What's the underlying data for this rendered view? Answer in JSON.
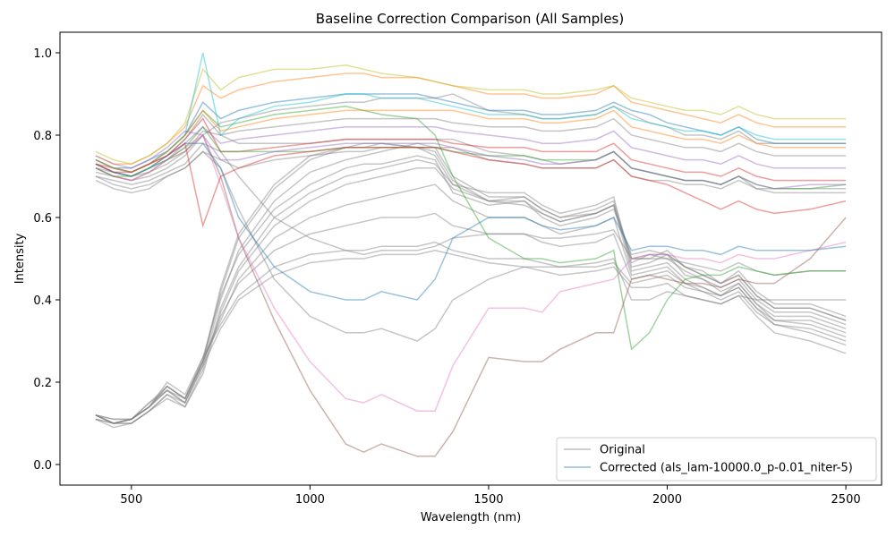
{
  "chart_data": {
    "type": "line",
    "title": "Baseline Correction Comparison (All Samples)",
    "xlabel": "Wavelength (nm)",
    "ylabel": "Intensity",
    "xlim": [
      300,
      2600
    ],
    "ylim": [
      -0.05,
      1.05
    ],
    "xticks": [
      500,
      1000,
      1500,
      2000,
      2500
    ],
    "yticks": [
      0.0,
      0.2,
      0.4,
      0.6,
      0.8,
      1.0
    ],
    "grid": false,
    "legend_position": "bottom-right",
    "legend": [
      {
        "label": "Original",
        "color": "#808080"
      },
      {
        "label": "Corrected (als_lam-10000.0_p-0.01_niter-5)",
        "color": "#1f77b4"
      }
    ],
    "original_color": "#808080",
    "corrected_palette": [
      "#1f77b4",
      "#ff7f0e",
      "#2ca02c",
      "#d62728",
      "#9467bd",
      "#8c564b",
      "#e377c2",
      "#7f7f7f",
      "#bcbd22",
      "#17becf"
    ],
    "x": [
      400,
      450,
      500,
      550,
      600,
      650,
      700,
      750,
      800,
      900,
      1000,
      1100,
      1150,
      1200,
      1300,
      1350,
      1400,
      1500,
      1600,
      1650,
      1700,
      1800,
      1850,
      1900,
      1950,
      2000,
      2050,
      2100,
      2150,
      2200,
      2250,
      2300,
      2400,
      2500
    ],
    "original_series": [
      {
        "values": [
          0.12,
          0.1,
          0.11,
          0.14,
          0.18,
          0.15,
          0.24,
          0.4,
          0.52,
          0.64,
          0.71,
          0.74,
          0.75,
          0.76,
          0.78,
          0.77,
          0.7,
          0.65,
          0.65,
          0.62,
          0.6,
          0.62,
          0.64,
          0.5,
          0.5,
          0.52,
          0.48,
          0.46,
          0.44,
          0.46,
          0.41,
          0.38,
          0.38,
          0.35
        ]
      },
      {
        "values": [
          0.12,
          0.1,
          0.11,
          0.15,
          0.19,
          0.16,
          0.25,
          0.42,
          0.55,
          0.67,
          0.74,
          0.77,
          0.77,
          0.78,
          0.77,
          0.76,
          0.69,
          0.64,
          0.63,
          0.61,
          0.59,
          0.61,
          0.63,
          0.49,
          0.51,
          0.5,
          0.47,
          0.45,
          0.43,
          0.45,
          0.4,
          0.37,
          0.37,
          0.34
        ]
      },
      {
        "values": [
          0.11,
          0.1,
          0.1,
          0.13,
          0.17,
          0.14,
          0.23,
          0.38,
          0.48,
          0.6,
          0.66,
          0.7,
          0.71,
          0.72,
          0.74,
          0.73,
          0.68,
          0.66,
          0.66,
          0.63,
          0.61,
          0.63,
          0.65,
          0.48,
          0.49,
          0.51,
          0.46,
          0.45,
          0.42,
          0.44,
          0.39,
          0.36,
          0.36,
          0.33
        ]
      },
      {
        "values": [
          0.12,
          0.11,
          0.11,
          0.14,
          0.2,
          0.17,
          0.26,
          0.41,
          0.51,
          0.62,
          0.68,
          0.72,
          0.73,
          0.73,
          0.75,
          0.74,
          0.66,
          0.63,
          0.64,
          0.6,
          0.58,
          0.6,
          0.62,
          0.51,
          0.52,
          0.51,
          0.48,
          0.47,
          0.44,
          0.47,
          0.42,
          0.39,
          0.39,
          0.36
        ]
      },
      {
        "values": [
          0.11,
          0.09,
          0.1,
          0.13,
          0.16,
          0.14,
          0.22,
          0.37,
          0.47,
          0.58,
          0.64,
          0.68,
          0.69,
          0.7,
          0.72,
          0.72,
          0.67,
          0.64,
          0.65,
          0.62,
          0.6,
          0.61,
          0.63,
          0.47,
          0.48,
          0.49,
          0.45,
          0.43,
          0.41,
          0.43,
          0.38,
          0.35,
          0.35,
          0.32
        ]
      },
      {
        "values": [
          0.12,
          0.1,
          0.11,
          0.14,
          0.19,
          0.16,
          0.25,
          0.35,
          0.45,
          0.55,
          0.6,
          0.63,
          0.64,
          0.65,
          0.67,
          0.68,
          0.64,
          0.6,
          0.6,
          0.58,
          0.56,
          0.58,
          0.6,
          0.46,
          0.47,
          0.48,
          0.44,
          0.42,
          0.4,
          0.42,
          0.37,
          0.34,
          0.33,
          0.3
        ]
      },
      {
        "values": [
          0.12,
          0.1,
          0.11,
          0.15,
          0.18,
          0.16,
          0.26,
          0.34,
          0.41,
          0.48,
          0.51,
          0.52,
          0.52,
          0.53,
          0.53,
          0.54,
          0.52,
          0.5,
          0.5,
          0.49,
          0.48,
          0.48,
          0.49,
          0.44,
          0.45,
          0.46,
          0.43,
          0.42,
          0.41,
          0.43,
          0.38,
          0.34,
          0.32,
          0.29
        ]
      },
      {
        "values": [
          0.11,
          0.1,
          0.1,
          0.13,
          0.17,
          0.15,
          0.24,
          0.33,
          0.4,
          0.46,
          0.49,
          0.5,
          0.5,
          0.51,
          0.51,
          0.52,
          0.51,
          0.49,
          0.48,
          0.47,
          0.46,
          0.47,
          0.48,
          0.43,
          0.43,
          0.44,
          0.41,
          0.4,
          0.39,
          0.41,
          0.36,
          0.32,
          0.3,
          0.27
        ]
      },
      {
        "values": [
          0.12,
          0.1,
          0.11,
          0.14,
          0.18,
          0.15,
          0.25,
          0.36,
          0.44,
          0.52,
          0.56,
          0.58,
          0.59,
          0.6,
          0.6,
          0.61,
          0.58,
          0.56,
          0.56,
          0.54,
          0.53,
          0.54,
          0.56,
          0.45,
          0.46,
          0.47,
          0.44,
          0.43,
          0.41,
          0.44,
          0.39,
          0.35,
          0.34,
          0.31
        ]
      },
      {
        "values": [
          0.12,
          0.11,
          0.11,
          0.14,
          0.19,
          0.16,
          0.25,
          0.43,
          0.56,
          0.68,
          0.75,
          0.77,
          0.78,
          0.78,
          0.77,
          0.75,
          0.68,
          0.64,
          0.64,
          0.61,
          0.59,
          0.61,
          0.63,
          0.5,
          0.51,
          0.51,
          0.48,
          0.46,
          0.44,
          0.46,
          0.41,
          0.38,
          0.38,
          0.35
        ]
      },
      {
        "values": [
          0.71,
          0.7,
          0.69,
          0.7,
          0.72,
          0.75,
          0.8,
          0.83,
          0.84,
          0.86,
          0.87,
          0.88,
          0.88,
          0.89,
          0.89,
          0.89,
          0.9,
          0.86,
          0.85,
          0.84,
          0.84,
          0.85,
          0.87,
          0.85,
          0.83,
          0.82,
          0.8,
          0.8,
          0.79,
          0.81,
          0.78,
          0.78,
          0.78,
          0.78
        ]
      },
      {
        "values": [
          0.69,
          0.67,
          0.66,
          0.67,
          0.7,
          0.72,
          0.76,
          0.72,
          0.62,
          0.45,
          0.36,
          0.32,
          0.32,
          0.33,
          0.3,
          0.33,
          0.4,
          0.45,
          0.48,
          0.48,
          0.48,
          0.49,
          0.5,
          0.4,
          0.4,
          0.42,
          0.41,
          0.4,
          0.39,
          0.41,
          0.4,
          0.4,
          0.4,
          0.4
        ]
      },
      {
        "values": [
          0.7,
          0.69,
          0.68,
          0.69,
          0.71,
          0.73,
          0.78,
          0.76,
          0.7,
          0.6,
          0.55,
          0.52,
          0.51,
          0.52,
          0.52,
          0.53,
          0.55,
          0.56,
          0.56,
          0.55,
          0.55,
          0.56,
          0.57,
          0.5,
          0.5,
          0.5,
          0.49,
          0.48,
          0.47,
          0.49,
          0.47,
          0.46,
          0.47,
          0.47
        ]
      },
      {
        "values": [
          0.72,
          0.71,
          0.7,
          0.71,
          0.73,
          0.76,
          0.81,
          0.8,
          0.78,
          0.78,
          0.78,
          0.79,
          0.79,
          0.79,
          0.79,
          0.79,
          0.79,
          0.76,
          0.75,
          0.74,
          0.73,
          0.74,
          0.76,
          0.72,
          0.71,
          0.7,
          0.69,
          0.69,
          0.68,
          0.7,
          0.67,
          0.67,
          0.67,
          0.67
        ]
      },
      {
        "values": [
          0.7,
          0.68,
          0.67,
          0.68,
          0.7,
          0.72,
          0.76,
          0.74,
          0.72,
          0.74,
          0.75,
          0.76,
          0.76,
          0.77,
          0.77,
          0.77,
          0.77,
          0.74,
          0.73,
          0.72,
          0.72,
          0.72,
          0.74,
          0.7,
          0.69,
          0.69,
          0.68,
          0.68,
          0.67,
          0.69,
          0.67,
          0.66,
          0.66,
          0.66
        ]
      }
    ],
    "corrected_series": [
      {
        "values": [
          0.74,
          0.72,
          0.72,
          0.74,
          0.76,
          0.8,
          0.88,
          0.84,
          0.86,
          0.88,
          0.89,
          0.9,
          0.9,
          0.9,
          0.9,
          0.89,
          0.88,
          0.86,
          0.86,
          0.85,
          0.85,
          0.86,
          0.88,
          0.86,
          0.85,
          0.83,
          0.82,
          0.81,
          0.8,
          0.82,
          0.79,
          0.78,
          0.78,
          0.78
        ]
      },
      {
        "values": [
          0.75,
          0.73,
          0.73,
          0.75,
          0.78,
          0.82,
          0.92,
          0.89,
          0.91,
          0.93,
          0.94,
          0.95,
          0.95,
          0.94,
          0.94,
          0.93,
          0.92,
          0.9,
          0.9,
          0.89,
          0.89,
          0.9,
          0.92,
          0.88,
          0.87,
          0.86,
          0.85,
          0.84,
          0.83,
          0.85,
          0.83,
          0.82,
          0.82,
          0.82
        ]
      },
      {
        "values": [
          0.74,
          0.72,
          0.71,
          0.73,
          0.76,
          0.8,
          0.86,
          0.82,
          0.83,
          0.85,
          0.86,
          0.87,
          0.86,
          0.85,
          0.84,
          0.8,
          0.7,
          0.55,
          0.5,
          0.5,
          0.49,
          0.5,
          0.52,
          0.28,
          0.32,
          0.4,
          0.45,
          0.46,
          0.46,
          0.48,
          0.47,
          0.46,
          0.47,
          0.47
        ]
      },
      {
        "values": [
          0.73,
          0.72,
          0.71,
          0.73,
          0.75,
          0.79,
          0.84,
          0.76,
          0.76,
          0.77,
          0.78,
          0.79,
          0.79,
          0.79,
          0.79,
          0.79,
          0.78,
          0.77,
          0.77,
          0.76,
          0.76,
          0.76,
          0.78,
          0.74,
          0.73,
          0.72,
          0.71,
          0.71,
          0.7,
          0.72,
          0.7,
          0.69,
          0.69,
          0.69
        ]
      },
      {
        "values": [
          0.73,
          0.71,
          0.7,
          0.72,
          0.74,
          0.78,
          0.82,
          0.78,
          0.79,
          0.8,
          0.81,
          0.82,
          0.82,
          0.82,
          0.82,
          0.82,
          0.81,
          0.8,
          0.79,
          0.78,
          0.78,
          0.79,
          0.81,
          0.77,
          0.76,
          0.75,
          0.74,
          0.74,
          0.73,
          0.75,
          0.73,
          0.72,
          0.72,
          0.72
        ]
      },
      {
        "values": [
          0.72,
          0.7,
          0.69,
          0.71,
          0.74,
          0.76,
          0.8,
          0.7,
          0.55,
          0.35,
          0.18,
          0.05,
          0.03,
          0.05,
          0.02,
          0.02,
          0.08,
          0.26,
          0.25,
          0.25,
          0.28,
          0.32,
          0.32,
          0.45,
          0.46,
          0.45,
          0.44,
          0.44,
          0.43,
          0.45,
          0.44,
          0.44,
          0.5,
          0.6
        ]
      },
      {
        "values": [
          0.72,
          0.7,
          0.69,
          0.71,
          0.74,
          0.77,
          0.8,
          0.68,
          0.55,
          0.38,
          0.25,
          0.16,
          0.15,
          0.17,
          0.13,
          0.13,
          0.24,
          0.38,
          0.38,
          0.37,
          0.42,
          0.44,
          0.45,
          0.5,
          0.51,
          0.51,
          0.5,
          0.5,
          0.49,
          0.51,
          0.5,
          0.5,
          0.52,
          0.54
        ]
      },
      {
        "values": [
          0.73,
          0.71,
          0.7,
          0.72,
          0.75,
          0.79,
          0.85,
          0.8,
          0.81,
          0.82,
          0.83,
          0.84,
          0.84,
          0.84,
          0.84,
          0.84,
          0.83,
          0.82,
          0.82,
          0.81,
          0.81,
          0.82,
          0.84,
          0.8,
          0.79,
          0.78,
          0.77,
          0.77,
          0.76,
          0.78,
          0.76,
          0.75,
          0.75,
          0.75
        ]
      },
      {
        "values": [
          0.76,
          0.74,
          0.73,
          0.75,
          0.78,
          0.83,
          0.96,
          0.91,
          0.94,
          0.96,
          0.96,
          0.97,
          0.96,
          0.95,
          0.94,
          0.93,
          0.92,
          0.91,
          0.91,
          0.9,
          0.9,
          0.91,
          0.92,
          0.89,
          0.88,
          0.87,
          0.86,
          0.86,
          0.85,
          0.87,
          0.85,
          0.84,
          0.84,
          0.84
        ]
      },
      {
        "values": [
          0.74,
          0.72,
          0.71,
          0.73,
          0.76,
          0.8,
          1.0,
          0.8,
          0.84,
          0.87,
          0.88,
          0.9,
          0.9,
          0.89,
          0.89,
          0.88,
          0.87,
          0.85,
          0.85,
          0.84,
          0.84,
          0.85,
          0.87,
          0.84,
          0.83,
          0.82,
          0.81,
          0.81,
          0.8,
          0.82,
          0.8,
          0.79,
          0.79,
          0.79
        ]
      },
      {
        "values": [
          0.73,
          0.71,
          0.7,
          0.72,
          0.75,
          0.78,
          0.78,
          0.72,
          0.6,
          0.48,
          0.42,
          0.4,
          0.4,
          0.42,
          0.4,
          0.45,
          0.55,
          0.6,
          0.6,
          0.58,
          0.57,
          0.58,
          0.6,
          0.52,
          0.53,
          0.53,
          0.52,
          0.52,
          0.51,
          0.53,
          0.52,
          0.52,
          0.52,
          0.53
        ]
      },
      {
        "values": [
          0.74,
          0.72,
          0.71,
          0.73,
          0.76,
          0.8,
          0.86,
          0.81,
          0.82,
          0.84,
          0.85,
          0.86,
          0.86,
          0.86,
          0.86,
          0.86,
          0.86,
          0.84,
          0.84,
          0.83,
          0.83,
          0.84,
          0.86,
          0.82,
          0.81,
          0.8,
          0.79,
          0.79,
          0.78,
          0.8,
          0.78,
          0.77,
          0.77,
          0.77
        ]
      },
      {
        "values": [
          0.72,
          0.7,
          0.7,
          0.72,
          0.74,
          0.77,
          0.82,
          0.76,
          0.76,
          0.76,
          0.76,
          0.77,
          0.77,
          0.77,
          0.77,
          0.77,
          0.76,
          0.75,
          0.75,
          0.74,
          0.74,
          0.74,
          0.76,
          0.72,
          0.71,
          0.7,
          0.69,
          0.69,
          0.68,
          0.7,
          0.68,
          0.67,
          0.67,
          0.68
        ]
      },
      {
        "values": [
          0.73,
          0.71,
          0.71,
          0.73,
          0.75,
          0.78,
          0.58,
          0.7,
          0.72,
          0.75,
          0.76,
          0.77,
          0.77,
          0.77,
          0.77,
          0.77,
          0.76,
          0.74,
          0.73,
          0.72,
          0.72,
          0.72,
          0.74,
          0.7,
          0.69,
          0.68,
          0.66,
          0.64,
          0.62,
          0.64,
          0.62,
          0.61,
          0.62,
          0.64
        ]
      },
      {
        "values": [
          0.75,
          0.73,
          0.72,
          0.74,
          0.77,
          0.81,
          0.8,
          0.74,
          0.74,
          0.76,
          0.77,
          0.78,
          0.78,
          0.78,
          0.78,
          0.78,
          0.77,
          0.75,
          0.74,
          0.73,
          0.73,
          0.74,
          0.76,
          0.72,
          0.71,
          0.7,
          0.69,
          0.69,
          0.68,
          0.7,
          0.68,
          0.67,
          0.68,
          0.68
        ]
      }
    ]
  }
}
